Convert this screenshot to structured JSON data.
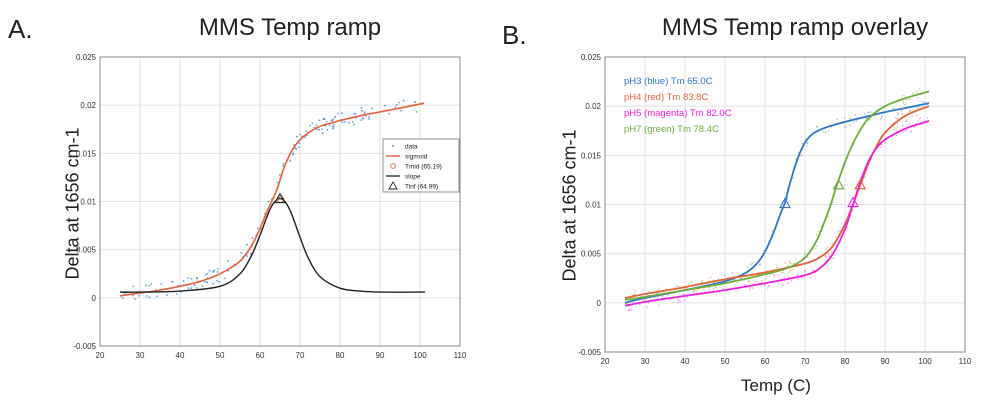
{
  "panels": {
    "a": {
      "letter": "A.",
      "title": "MMS Temp ramp",
      "ylabel": "Delta at 1656 cm-1"
    },
    "b": {
      "letter": "B.",
      "title": "MMS Temp ramp overlay",
      "ylabel": "Delta at 1656 cm-1",
      "xlabel": "Temp (C)"
    }
  },
  "chart_data": [
    {
      "type": "line",
      "title": "MMS Temp ramp",
      "xlabel": "",
      "ylabel": "Delta at 1656 cm-1",
      "xlim": [
        20,
        110
      ],
      "ylim": [
        -0.005,
        0.025
      ],
      "xticks": [
        "20",
        "30",
        "40",
        "50",
        "60",
        "70",
        "80",
        "90",
        "100",
        "110"
      ],
      "yticks": [
        "-0.005",
        "0",
        "0.005",
        "0.01",
        "0.015",
        "0.02",
        "0.025"
      ],
      "grid": true,
      "legend_position": "right",
      "legend": [
        "data",
        "sigmoid",
        "Tmid (65.19)",
        "slope",
        "Tinf (64.99)"
      ],
      "colors": {
        "data": "#4a90d0",
        "sigmoid": "#e8613a",
        "tmid": "#e8613a",
        "slope": "#222222",
        "tinf": "#222222"
      },
      "sigmoid": {
        "x": [
          25,
          30,
          35,
          40,
          45,
          50,
          55,
          58,
          60,
          62,
          64,
          65,
          66,
          68,
          70,
          72,
          75,
          80,
          85,
          90,
          95,
          101
        ],
        "y": [
          0.0002,
          0.0005,
          0.0008,
          0.0012,
          0.0017,
          0.0025,
          0.0038,
          0.0055,
          0.0072,
          0.0092,
          0.011,
          0.0122,
          0.0135,
          0.0153,
          0.0164,
          0.0171,
          0.0178,
          0.0184,
          0.0189,
          0.0193,
          0.0197,
          0.0202
        ]
      },
      "slope": {
        "x": [
          25,
          30,
          40,
          50,
          55,
          58,
          60,
          62,
          63,
          64,
          65,
          66,
          67,
          68,
          70,
          72,
          75,
          80,
          85,
          90,
          100,
          101
        ],
        "y": [
          0.0006,
          0.0006,
          0.0007,
          0.0012,
          0.0025,
          0.0045,
          0.0065,
          0.0087,
          0.0096,
          0.0101,
          0.0103,
          0.0101,
          0.0095,
          0.0086,
          0.0063,
          0.0042,
          0.0022,
          0.001,
          0.0007,
          0.0006,
          0.0006,
          0.0006
        ]
      },
      "markers": [
        {
          "label": "Tmid (65.19)",
          "x": 65.19,
          "y": 0.0102,
          "shape": "circle"
        },
        {
          "label": "Tinf (64.99)",
          "x": 64.99,
          "y": 0.0103,
          "shape": "triangle"
        }
      ]
    },
    {
      "type": "line",
      "title": "MMS Temp ramp overlay",
      "xlabel": "Temp (C)",
      "ylabel": "Delta at 1656 cm-1",
      "xlim": [
        20,
        110
      ],
      "ylim": [
        -0.005,
        0.025
      ],
      "xticks": [
        "20",
        "30",
        "40",
        "50",
        "60",
        "70",
        "80",
        "90",
        "100",
        "110"
      ],
      "yticks": [
        "-0.005",
        "0",
        "0.005",
        "0.01",
        "0.015",
        "0.02",
        "0.025"
      ],
      "grid": true,
      "legend_position": "top-left",
      "series": [
        {
          "name": "pH3 (blue) Tm 65.0C",
          "color": "#2e78c8",
          "tm": 65.0,
          "tm_y": 0.0101,
          "x": [
            25,
            30,
            40,
            50,
            55,
            58,
            60,
            62,
            64,
            65,
            66,
            68,
            70,
            72,
            75,
            80,
            85,
            90,
            95,
            101
          ],
          "y": [
            0.0,
            0.0005,
            0.0013,
            0.0022,
            0.003,
            0.004,
            0.0052,
            0.007,
            0.0092,
            0.0102,
            0.0118,
            0.0145,
            0.0163,
            0.0172,
            0.0178,
            0.0184,
            0.0189,
            0.0194,
            0.0198,
            0.0203
          ]
        },
        {
          "name": "pH4  (red) Tm 83.8C",
          "color": "#e0643a",
          "tm": 83.8,
          "tm_y": 0.012,
          "x": [
            25,
            30,
            40,
            50,
            60,
            70,
            74,
            77,
            80,
            82,
            84,
            86,
            88,
            90,
            95,
            101
          ],
          "y": [
            0.0005,
            0.0009,
            0.0016,
            0.0024,
            0.0031,
            0.004,
            0.0047,
            0.0058,
            0.008,
            0.01,
            0.0122,
            0.0143,
            0.016,
            0.0173,
            0.019,
            0.02
          ]
        },
        {
          "name": "pH5 (magenta) Tm 82.0C",
          "color": "#f020e0",
          "tm": 82.0,
          "tm_y": 0.0102,
          "x": [
            25,
            30,
            40,
            50,
            60,
            70,
            74,
            77,
            80,
            82,
            84,
            86,
            88,
            90,
            95,
            101
          ],
          "y": [
            -0.0003,
            0.0001,
            0.0007,
            0.0013,
            0.002,
            0.0028,
            0.0036,
            0.005,
            0.0075,
            0.01,
            0.0125,
            0.0145,
            0.0158,
            0.0166,
            0.0177,
            0.0185
          ]
        },
        {
          "name": "pH7 (green) Tm 78.4C",
          "color": "#6fae3a",
          "tm": 78.4,
          "tm_y": 0.012,
          "x": [
            25,
            30,
            40,
            50,
            60,
            66,
            70,
            73,
            76,
            78,
            80,
            82,
            84,
            86,
            90,
            95,
            101
          ],
          "y": [
            0.0003,
            0.0006,
            0.0013,
            0.002,
            0.0029,
            0.0036,
            0.0046,
            0.0064,
            0.0095,
            0.012,
            0.0143,
            0.0162,
            0.0177,
            0.0188,
            0.02,
            0.0208,
            0.0215
          ]
        }
      ]
    }
  ]
}
